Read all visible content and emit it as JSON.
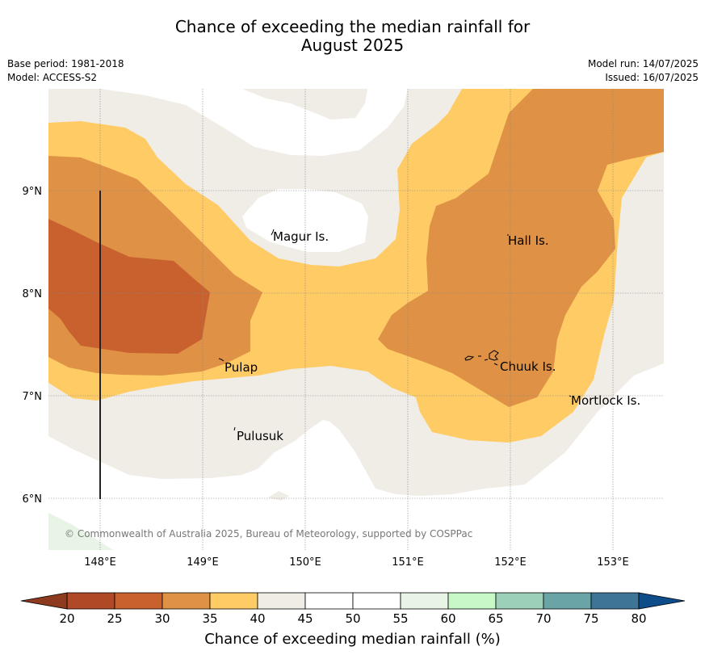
{
  "title": {
    "line1": "Chance of exceeding the median rainfall for",
    "line2": "August 2025"
  },
  "meta": {
    "base_period": "Base period: 1981-2018",
    "model": "Model: ACCESS-S2",
    "model_run": "Model run: 14/07/2025",
    "issued": "Issued: 16/07/2025"
  },
  "map": {
    "lon_ticks": [
      "148°E",
      "149°E",
      "150°E",
      "151°E",
      "152°E",
      "153°E"
    ],
    "lat_ticks": [
      "9°N",
      "8°N",
      "7°N",
      "6°N"
    ],
    "places": [
      "Magur Is.",
      "Hall Is.",
      "Pulap",
      "Chuuk Is.",
      "Mortlock Is.",
      "Pulusuk"
    ],
    "copyright": "© Commonwealth of Australia 2025, Bureau of Meteorology, supported by COSPPac"
  },
  "colorbar": {
    "label": "Chance of exceeding median rainfall (%)",
    "ticks": [
      "20",
      "25",
      "30",
      "35",
      "40",
      "45",
      "50",
      "55",
      "60",
      "65",
      "70",
      "75",
      "80"
    ],
    "colors": [
      "#b04a26",
      "#c9612f",
      "#df9245",
      "#fecb65",
      "#f0ece6",
      "#ffffff",
      "#ffffff",
      "#e8f4e6",
      "#c8f7c8",
      "#9cd0b8",
      "#6ba4a6",
      "#3e7597"
    ],
    "under_color": "#8e3a1e",
    "over_color": "#0f4c8a"
  }
}
